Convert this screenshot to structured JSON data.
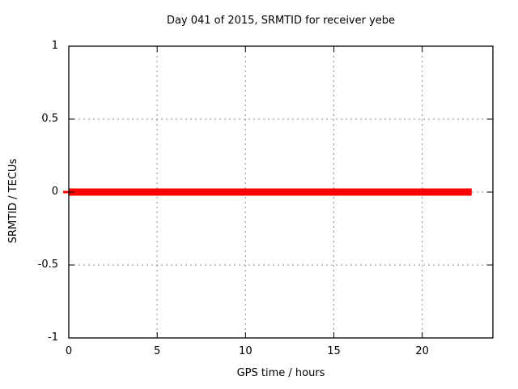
{
  "window": {
    "background_color": "#ffffff",
    "text_color": "#000000"
  },
  "chart_data": {
    "type": "line",
    "title": "Day 041 of 2015, SRMTID for receiver yebe",
    "xlabel": "GPS time / hours",
    "ylabel": "SRMTID / TECUs",
    "xlim": [
      0,
      24
    ],
    "ylim": [
      -1,
      1
    ],
    "xticks": [
      0,
      5,
      10,
      15,
      20
    ],
    "yticks": [
      1,
      0.5,
      0,
      -0.5,
      -1
    ],
    "grid": true,
    "grid_style": "dotted",
    "grid_color": "#909090",
    "border_color": "#000000",
    "tick_label_color": "#000000",
    "legend": "none",
    "series": [
      {
        "name": "SRMTID",
        "color": "#ff0000",
        "linewidth": 9,
        "x": [
          0,
          22.8
        ],
        "y": [
          0,
          0
        ]
      }
    ]
  }
}
